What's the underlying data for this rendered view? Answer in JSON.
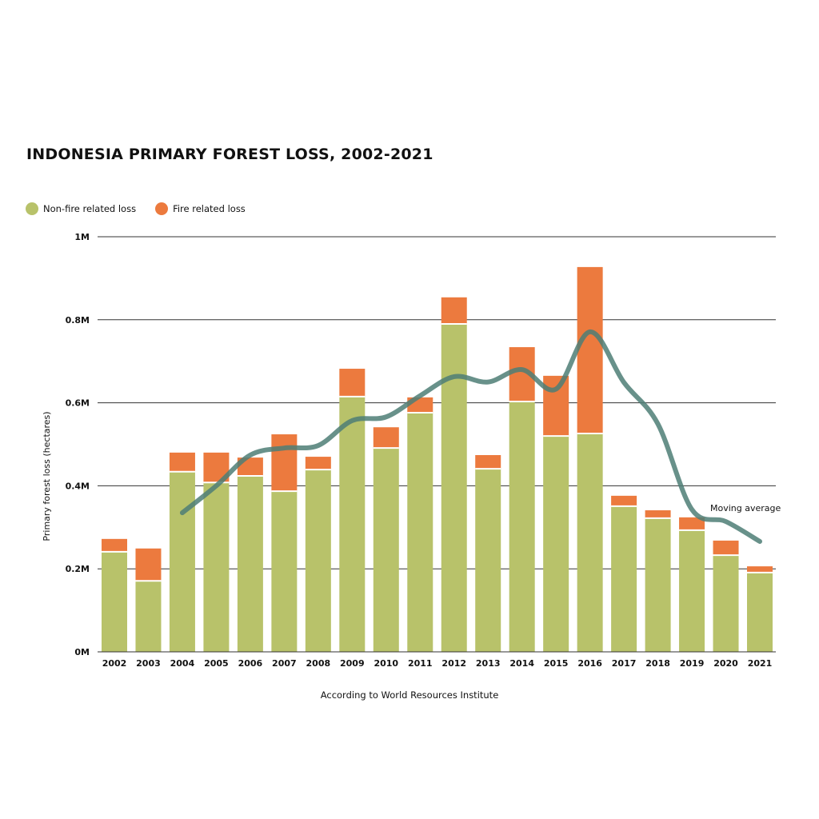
{
  "chart_data": {
    "type": "bar",
    "stacked": true,
    "title": "INDONESIA PRIMARY FOREST LOSS, 2002-2021",
    "xlabel": "According to World Resources Institute",
    "ylabel": "Primary forest loss (hectares)",
    "ylim": [
      0,
      1000000
    ],
    "yticks": [
      {
        "value": 0,
        "label": "0M"
      },
      {
        "value": 200000,
        "label": "0.2M"
      },
      {
        "value": 400000,
        "label": "0.4M"
      },
      {
        "value": 600000,
        "label": "0.6M"
      },
      {
        "value": 800000,
        "label": "0.8M"
      },
      {
        "value": 1000000,
        "label": "1M"
      }
    ],
    "grid": true,
    "legend_placement": "top-left",
    "categories": [
      "2002",
      "2003",
      "2004",
      "2005",
      "2006",
      "2007",
      "2008",
      "2009",
      "2010",
      "2011",
      "2012",
      "2013",
      "2014",
      "2015",
      "2016",
      "2017",
      "2018",
      "2019",
      "2020",
      "2021"
    ],
    "series": [
      {
        "name": "Non-fire related loss",
        "color": "#b8c26a",
        "values": [
          241000,
          171000,
          434000,
          408000,
          424000,
          387000,
          439000,
          615000,
          491000,
          576000,
          790000,
          441000,
          603000,
          520000,
          526000,
          351000,
          322000,
          293000,
          233000,
          191000
        ]
      },
      {
        "name": "Fire related loss",
        "color": "#ec7a3e",
        "values": [
          31000,
          78000,
          46000,
          72000,
          44000,
          137000,
          31000,
          67000,
          50000,
          37000,
          64000,
          33000,
          131000,
          145000,
          401000,
          25000,
          19000,
          31000,
          35000,
          15000
        ]
      }
    ],
    "line": {
      "name": "Moving average",
      "color": "#4d7e75",
      "x": [
        "2004",
        "2005",
        "2006",
        "2007",
        "2008",
        "2009",
        "2010",
        "2011",
        "2012",
        "2013",
        "2014",
        "2015",
        "2016",
        "2017",
        "2018",
        "2019",
        "2020",
        "2021"
      ],
      "values": [
        335000,
        400000,
        474000,
        491000,
        497000,
        557000,
        566000,
        617000,
        663000,
        650000,
        680000,
        633000,
        771000,
        649000,
        549000,
        343000,
        314000,
        266000
      ]
    }
  }
}
